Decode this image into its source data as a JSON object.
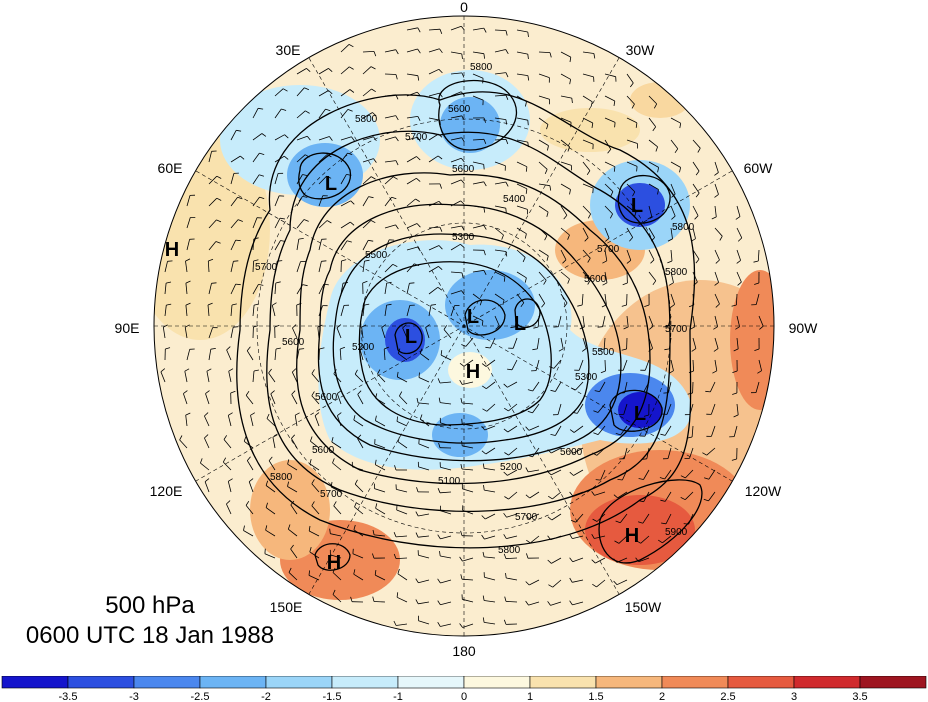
{
  "title": {
    "level": "500 hPa",
    "time": "0600 UTC 18 Jan 1988"
  },
  "longitude_labels": [
    "0",
    "30W",
    "60W",
    "90W",
    "120W",
    "150W",
    "180",
    "150E",
    "120E",
    "90E",
    "60E",
    "30E"
  ],
  "pressure_systems": [
    "L",
    "L",
    "L",
    "L",
    "L",
    "L",
    "H",
    "H",
    "H",
    "H"
  ],
  "contour_labels": [
    "5800",
    "5600",
    "5800",
    "5700",
    "5600",
    "5400",
    "5300",
    "5800",
    "5700",
    "5800",
    "5600",
    "5500",
    "5200",
    "5700",
    "5600",
    "5700",
    "5500",
    "5300",
    "5600",
    "5100",
    "5200",
    "5600",
    "5700",
    "5800",
    "5900",
    "5800",
    "5700",
    "5600"
  ],
  "colorbar": {
    "colors": [
      "#1515cc",
      "#2c4fe0",
      "#4b87ee",
      "#6cb4f4",
      "#9bd5f8",
      "#c7ecfb",
      "#e6f7fb",
      "#fdf8df",
      "#f9e2ae",
      "#f6b77c",
      "#f08a58",
      "#e65a3f",
      "#d02a2d",
      "#9e1520"
    ],
    "labels": [
      "-3.5",
      "-3",
      "-2.5",
      "-2",
      "-1.5",
      "-1",
      "0",
      "1",
      "1.5",
      "2",
      "2.5",
      "3",
      "3.5"
    ]
  }
}
